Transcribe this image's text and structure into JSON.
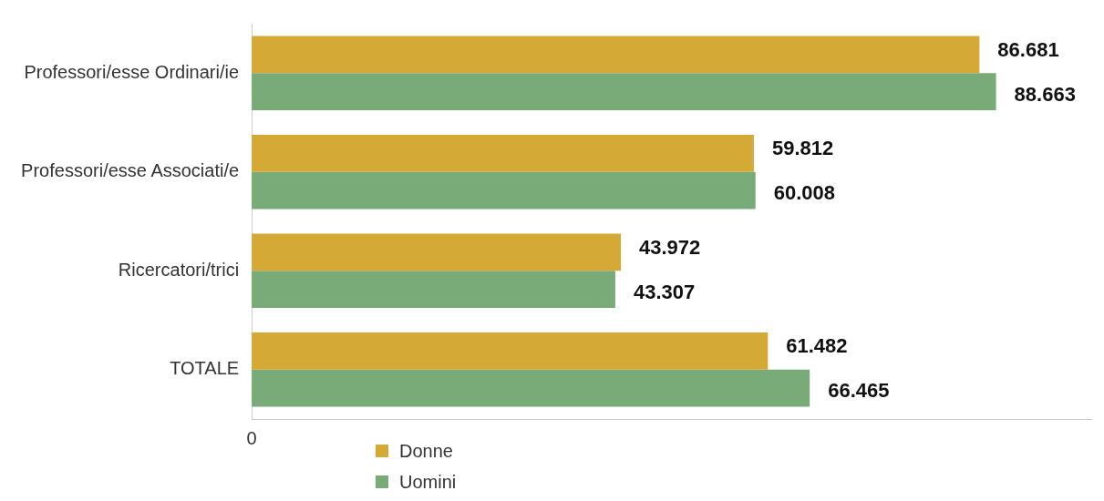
{
  "chart_data": {
    "type": "bar",
    "orientation": "horizontal",
    "categories": [
      "Professori/esse Ordinari/ie",
      "Professori/esse Associati/e",
      "Ricercatori/trici",
      "TOTALE"
    ],
    "series": [
      {
        "name": "Donne",
        "color": "#d4a935",
        "values": [
          86681,
          59812,
          43972,
          61482
        ],
        "value_labels": [
          "86.681",
          "59.812",
          "43.972",
          "61.482"
        ]
      },
      {
        "name": "Uomini",
        "color": "#79ab78",
        "values": [
          88663,
          60008,
          43307,
          66465
        ],
        "value_labels": [
          "88.663",
          "60.008",
          "43.307",
          "66.465"
        ]
      }
    ],
    "annotations": [
      "0"
    ],
    "grid": false,
    "legend": "bottom"
  }
}
